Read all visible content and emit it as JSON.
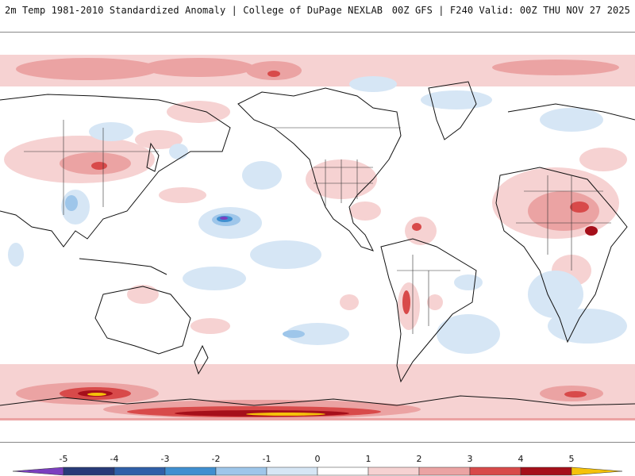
{
  "header": {
    "title_left": "2m Temp 1981-2010 Standardized Anomaly | College of DuPage NEXLAB",
    "title_right": "00Z GFS | F240 Valid: 00Z THU NOV 27 2025"
  },
  "legend": {
    "ticks": [
      "-5",
      "-4",
      "-3",
      "-2",
      "-1",
      "0",
      "1",
      "2",
      "3",
      "4",
      "5"
    ],
    "colors": {
      "lt_minus5": "#7b3fbf",
      "m5_m4": "#283a78",
      "m4_m3": "#2f5fa8",
      "m3_m2": "#3f8fd0",
      "m2_m1": "#9ec6ea",
      "m1_0": "#d6e6f5",
      "zero_1": "#ffffff",
      "p1_p2": "#f6d2d2",
      "p2_p3": "#eba3a3",
      "p3_p4": "#d84a4a",
      "p4_p5": "#a50f1a",
      "gt_5": "#f5c20a"
    }
  },
  "map": {
    "coastline_color": "#111111",
    "border_color": "#333333"
  }
}
